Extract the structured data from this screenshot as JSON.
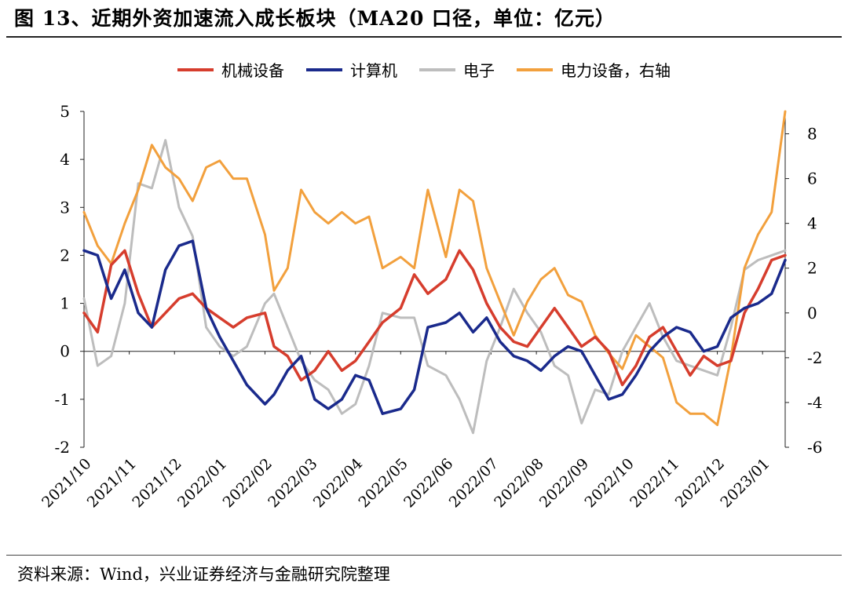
{
  "title": "图 13、近期外资加速流入成长板块（MA20 口径，单位：亿元）",
  "source": "资料来源：Wind，兴业证券经济与金融研究院整理",
  "colors": {
    "机械设备": "#d63d2d",
    "计算机": "#1a2a8c",
    "电子": "#bdbdbd",
    "电力设备": "#f2a03d"
  },
  "chart_data": {
    "type": "line",
    "x_ticks": [
      "2021/10",
      "2021/11",
      "2021/12",
      "2022/01",
      "2022/02",
      "2022/03",
      "2022/04",
      "2022/05",
      "2022/06",
      "2022/07",
      "2022/08",
      "2022/09",
      "2022/10",
      "2022/11",
      "2022/12",
      "2023/01"
    ],
    "x_index_range": [
      0,
      15.5
    ],
    "y_left": {
      "ticks": [
        "5",
        "4",
        "3",
        "2",
        "1",
        "0",
        "-1",
        "-2"
      ],
      "range": [
        -2,
        5
      ]
    },
    "y_right": {
      "ticks": [
        "8",
        "6",
        "4",
        "2",
        "0",
        "-2",
        "-4",
        "-6"
      ],
      "range": [
        -6,
        9
      ]
    },
    "legend": [
      "机械设备",
      "计算机",
      "电子",
      "电力设备，右轴"
    ],
    "series": [
      {
        "name": "机械设备",
        "axis": "left",
        "x": [
          0,
          0.3,
          0.6,
          0.9,
          1.2,
          1.5,
          1.8,
          2.1,
          2.4,
          2.7,
          3.0,
          3.3,
          3.6,
          4.0,
          4.2,
          4.5,
          4.8,
          5.1,
          5.4,
          5.7,
          6.0,
          6.3,
          6.6,
          7.0,
          7.3,
          7.6,
          8.0,
          8.3,
          8.6,
          8.9,
          9.2,
          9.5,
          9.8,
          10.1,
          10.4,
          10.7,
          11.0,
          11.3,
          11.6,
          11.9,
          12.2,
          12.5,
          12.8,
          13.1,
          13.4,
          13.7,
          14.0,
          14.3,
          14.6,
          14.9,
          15.2,
          15.5
        ],
        "values": [
          0.8,
          0.4,
          1.8,
          2.1,
          1.2,
          0.5,
          0.8,
          1.1,
          1.2,
          0.9,
          0.7,
          0.5,
          0.7,
          0.8,
          0.1,
          -0.1,
          -0.6,
          -0.4,
          0.0,
          -0.4,
          -0.2,
          0.2,
          0.6,
          0.9,
          1.6,
          1.2,
          1.5,
          2.1,
          1.7,
          1.0,
          0.5,
          0.2,
          0.1,
          0.5,
          0.9,
          0.5,
          0.1,
          0.3,
          0.0,
          -0.7,
          -0.3,
          0.3,
          0.5,
          0.0,
          -0.5,
          -0.1,
          -0.3,
          -0.2,
          0.8,
          1.3,
          1.9,
          2.0
        ]
      },
      {
        "name": "计算机",
        "axis": "left",
        "x": [
          0,
          0.3,
          0.6,
          0.9,
          1.2,
          1.5,
          1.8,
          2.1,
          2.4,
          2.7,
          3.0,
          3.3,
          3.6,
          4.0,
          4.2,
          4.5,
          4.8,
          5.1,
          5.4,
          5.7,
          6.0,
          6.3,
          6.6,
          7.0,
          7.3,
          7.6,
          8.0,
          8.3,
          8.6,
          8.9,
          9.2,
          9.5,
          9.8,
          10.1,
          10.4,
          10.7,
          11.0,
          11.3,
          11.6,
          11.9,
          12.2,
          12.5,
          12.8,
          13.1,
          13.4,
          13.7,
          14.0,
          14.3,
          14.6,
          14.9,
          15.2,
          15.5
        ],
        "values": [
          2.1,
          2.0,
          1.1,
          1.7,
          0.8,
          0.5,
          1.7,
          2.2,
          2.3,
          0.9,
          0.3,
          -0.2,
          -0.7,
          -1.1,
          -0.9,
          -0.4,
          -0.1,
          -1.0,
          -1.2,
          -1.0,
          -0.5,
          -0.6,
          -1.3,
          -1.2,
          -0.8,
          0.5,
          0.6,
          0.8,
          0.4,
          0.7,
          0.2,
          -0.1,
          -0.2,
          -0.4,
          -0.1,
          0.1,
          0.0,
          -0.5,
          -1.0,
          -0.9,
          -0.5,
          0.0,
          0.3,
          0.5,
          0.4,
          0.0,
          0.1,
          0.7,
          0.9,
          1.0,
          1.2,
          1.9
        ]
      },
      {
        "name": "电子",
        "axis": "left",
        "x": [
          0,
          0.3,
          0.6,
          0.9,
          1.2,
          1.5,
          1.8,
          2.1,
          2.4,
          2.7,
          3.0,
          3.3,
          3.6,
          4.0,
          4.2,
          4.5,
          4.8,
          5.1,
          5.4,
          5.7,
          6.0,
          6.3,
          6.6,
          7.0,
          7.3,
          7.6,
          8.0,
          8.3,
          8.6,
          8.9,
          9.2,
          9.5,
          9.8,
          10.1,
          10.4,
          10.7,
          11.0,
          11.3,
          11.6,
          11.9,
          12.2,
          12.5,
          12.8,
          13.1,
          13.4,
          13.7,
          14.0,
          14.3,
          14.6,
          14.9,
          15.2,
          15.5
        ],
        "values": [
          1.1,
          -0.3,
          -0.1,
          1.0,
          3.5,
          3.4,
          4.4,
          3.0,
          2.4,
          0.5,
          0.1,
          -0.1,
          0.1,
          1.0,
          1.2,
          0.5,
          -0.2,
          -0.6,
          -0.8,
          -1.3,
          -1.1,
          -0.3,
          0.8,
          0.7,
          0.7,
          -0.3,
          -0.5,
          -1.0,
          -1.7,
          -0.2,
          0.5,
          1.3,
          0.8,
          0.4,
          -0.3,
          -0.5,
          -1.5,
          -0.8,
          -0.9,
          0.0,
          0.5,
          1.0,
          0.3,
          -0.2,
          -0.3,
          -0.4,
          -0.5,
          0.5,
          1.7,
          1.9,
          2.0,
          2.1
        ]
      },
      {
        "name": "电力设备",
        "axis": "right",
        "x": [
          0,
          0.3,
          0.6,
          0.9,
          1.2,
          1.5,
          1.8,
          2.1,
          2.4,
          2.7,
          3.0,
          3.3,
          3.6,
          4.0,
          4.2,
          4.5,
          4.8,
          5.1,
          5.4,
          5.7,
          6.0,
          6.3,
          6.6,
          7.0,
          7.3,
          7.6,
          8.0,
          8.3,
          8.6,
          8.9,
          9.2,
          9.5,
          9.8,
          10.1,
          10.4,
          10.7,
          11.0,
          11.3,
          11.6,
          11.9,
          12.2,
          12.5,
          12.8,
          13.1,
          13.4,
          13.7,
          14.0,
          14.3,
          14.6,
          14.9,
          15.2,
          15.5
        ],
        "values": [
          4.5,
          3.0,
          2.2,
          4.0,
          5.5,
          7.5,
          6.5,
          6.0,
          5.0,
          6.5,
          6.8,
          6.0,
          6.0,
          3.5,
          1.0,
          2.0,
          5.5,
          4.5,
          4.0,
          4.5,
          4.0,
          4.3,
          2.0,
          2.5,
          2.0,
          5.5,
          2.5,
          5.5,
          5.0,
          2.0,
          0.5,
          -1.0,
          0.5,
          1.5,
          2.0,
          0.8,
          0.5,
          -1.0,
          -1.8,
          -2.5,
          -1.0,
          -1.5,
          -2.0,
          -4.0,
          -4.5,
          -4.5,
          -5.0,
          -2.0,
          2.0,
          3.5,
          4.5,
          9.0
        ]
      }
    ]
  }
}
